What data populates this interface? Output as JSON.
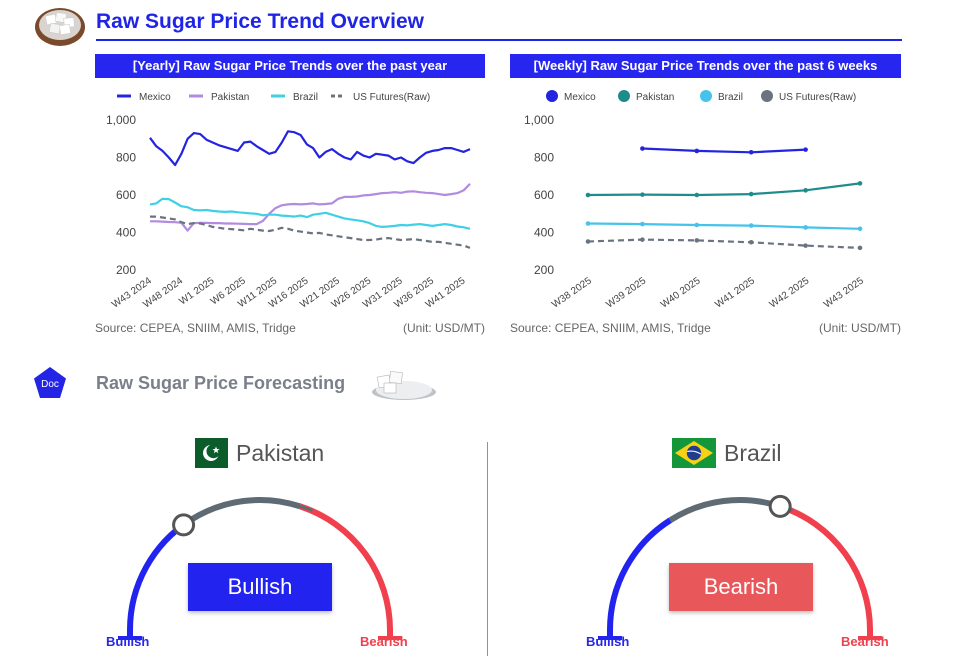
{
  "header": {
    "title": "Raw Sugar Price Trend Overview"
  },
  "colors": {
    "accent": "#1f24e6",
    "mexico": "#2424e0",
    "pakistan_yearly": "#b18be0",
    "brazil_yearly": "#3fd0e6",
    "pakistan_weekly": "#1f8c8c",
    "brazil_weekly": "#45c3ea",
    "us_futures": "#6b7380",
    "bullish": "#2323f0",
    "bearish": "#f0404e",
    "neutral": "#5f6b74"
  },
  "chart_data": [
    {
      "type": "line",
      "title": "[Yearly] Raw Sugar Price Trends over the past year",
      "source": "Source: CEPEA, SNIIM, AMIS, Tridge",
      "unit": "(Unit: USD/MT)",
      "ylim": [
        200,
        1000
      ],
      "yticks": [
        200,
        400,
        600,
        800,
        1000
      ],
      "ytick_labels": [
        "200",
        "400",
        "600",
        "800",
        "1,000"
      ],
      "grid": false,
      "legend_position": "top",
      "x_tick_labels": [
        "W43 2024",
        "W48 2024",
        "W1 2025",
        "W6 2025",
        "W11 2025",
        "W16 2025",
        "W21 2025",
        "W26 2025",
        "W31 2025",
        "W36 2025",
        "W41 2025"
      ],
      "x_tick_index": [
        0,
        5,
        10,
        15,
        20,
        25,
        30,
        35,
        40,
        45,
        50
      ],
      "series": [
        {
          "name": "Mexico",
          "style": "solid",
          "values": [
            905,
            860,
            835,
            800,
            760,
            820,
            900,
            930,
            925,
            895,
            880,
            865,
            855,
            845,
            835,
            880,
            885,
            860,
            840,
            820,
            830,
            880,
            940,
            935,
            920,
            870,
            850,
            800,
            830,
            845,
            820,
            800,
            790,
            830,
            810,
            800,
            820,
            815,
            810,
            790,
            800,
            780,
            770,
            800,
            825,
            835,
            840,
            850,
            850,
            840,
            830,
            845
          ]
        },
        {
          "name": "Pakistan",
          "style": "solid",
          "values": [
            460,
            460,
            458,
            456,
            455,
            452,
            410,
            450,
            452,
            451,
            450,
            450,
            448,
            448,
            447,
            446,
            445,
            445,
            462,
            500,
            530,
            545,
            550,
            552,
            550,
            552,
            555,
            550,
            552,
            555,
            580,
            590,
            590,
            592,
            598,
            600,
            605,
            610,
            612,
            615,
            612,
            618,
            620,
            615,
            612,
            610,
            605,
            600,
            605,
            610,
            625,
            660
          ]
        },
        {
          "name": "Brazil",
          "style": "solid",
          "values": [
            550,
            555,
            580,
            578,
            560,
            540,
            535,
            520,
            518,
            520,
            515,
            512,
            510,
            512,
            508,
            505,
            502,
            500,
            492,
            495,
            495,
            490,
            488,
            485,
            490,
            482,
            495,
            500,
            505,
            495,
            485,
            475,
            470,
            465,
            460,
            450,
            435,
            430,
            432,
            435,
            440,
            438,
            442,
            445,
            440,
            435,
            440,
            445,
            440,
            432,
            428,
            420
          ]
        },
        {
          "name": "US Futures(Raw)",
          "style": "dashed",
          "values": [
            485,
            485,
            480,
            475,
            470,
            455,
            445,
            450,
            448,
            440,
            430,
            425,
            420,
            418,
            415,
            412,
            420,
            415,
            410,
            408,
            415,
            425,
            420,
            410,
            405,
            400,
            395,
            398,
            390,
            385,
            380,
            375,
            370,
            365,
            360,
            360,
            362,
            368,
            370,
            365,
            360,
            362,
            365,
            360,
            355,
            350,
            350,
            345,
            340,
            335,
            330,
            318
          ]
        }
      ]
    },
    {
      "type": "line",
      "title": "[Weekly] Raw Sugar Price Trends over the past 6 weeks",
      "source": "Source: CEPEA, SNIIM, AMIS, Tridge",
      "unit": "(Unit: USD/MT)",
      "ylim": [
        200,
        1000
      ],
      "yticks": [
        200,
        400,
        600,
        800,
        1000
      ],
      "ytick_labels": [
        "200",
        "400",
        "600",
        "800",
        "1,000"
      ],
      "grid": false,
      "legend_position": "top",
      "categories": [
        "W38 2025",
        "W39 2025",
        "W40 2025",
        "W41 2025",
        "W42 2025",
        "W43 2025"
      ],
      "series": [
        {
          "name": "Mexico",
          "style": "solid",
          "values": [
            null,
            848,
            835,
            828,
            842,
            null
          ]
        },
        {
          "name": "Pakistan",
          "style": "solid",
          "values": [
            600,
            602,
            600,
            605,
            625,
            662
          ]
        },
        {
          "name": "Brazil",
          "style": "solid",
          "values": [
            448,
            445,
            440,
            437,
            427,
            420
          ]
        },
        {
          "name": "US Futures(Raw)",
          "style": "dashed",
          "values": [
            352,
            362,
            358,
            348,
            330,
            318
          ]
        }
      ]
    }
  ],
  "forecast": {
    "title": "Raw Sugar Price Forecasting",
    "badge": "Doc",
    "gauges": [
      {
        "country": "Pakistan",
        "flag_icon": "pakistan-flag-icon",
        "state": "Bullish",
        "needle_fraction": 0.3,
        "left_label": "Bullish",
        "right_label": "Bearish"
      },
      {
        "country": "Brazil",
        "flag_icon": "brazil-flag-icon",
        "state": "Bearish",
        "needle_fraction": 0.6,
        "left_label": "Bullish",
        "right_label": "Bearish"
      }
    ]
  }
}
